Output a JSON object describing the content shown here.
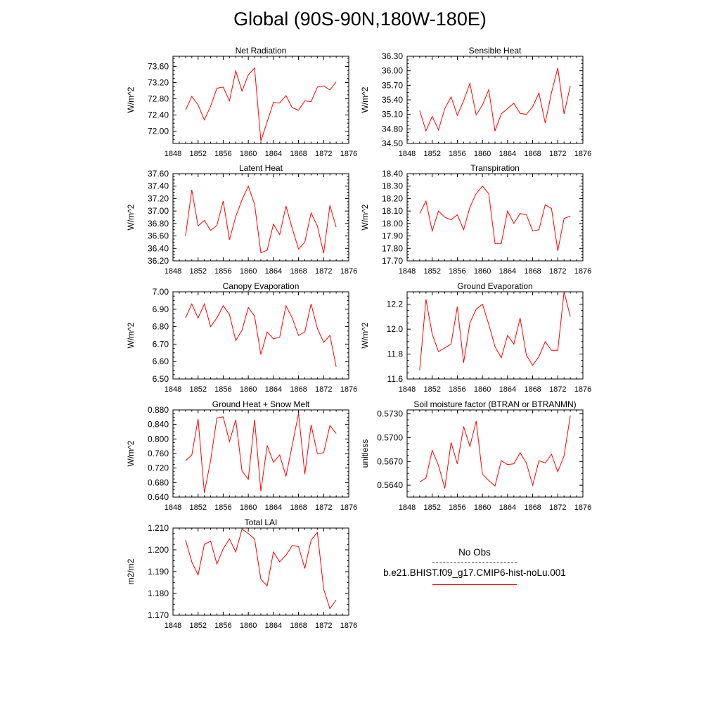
{
  "page_title": "Global (90S-90N,180W-180E)",
  "chart_data": [
    {
      "type": "line",
      "title": "Net Radiation",
      "ylabel": "W/m^2",
      "xlim": [
        1848,
        1876
      ],
      "ylim": [
        71.7,
        73.85
      ],
      "xticks": [
        1848,
        1852,
        1856,
        1860,
        1864,
        1868,
        1872,
        1876
      ],
      "yticks": [
        72.0,
        72.4,
        72.8,
        73.2,
        73.6
      ],
      "ytick_decimals": 2,
      "series": [
        {
          "color": "#ff0000",
          "x": [
            1850,
            1851,
            1852,
            1853,
            1854,
            1855,
            1856,
            1857,
            1858,
            1859,
            1860,
            1861,
            1862,
            1863,
            1864,
            1865,
            1866,
            1867,
            1868,
            1869,
            1870,
            1871,
            1872,
            1873,
            1874
          ],
          "y": [
            72.52,
            72.86,
            72.65,
            72.28,
            72.62,
            73.06,
            73.09,
            72.75,
            73.49,
            72.99,
            73.39,
            73.56,
            71.76,
            72.23,
            72.71,
            72.7,
            72.88,
            72.58,
            72.52,
            72.75,
            72.73,
            73.09,
            73.12,
            73.02,
            73.22
          ]
        }
      ]
    },
    {
      "type": "line",
      "title": "Sensible Heat",
      "ylabel": "W/m^2",
      "xlim": [
        1848,
        1876
      ],
      "ylim": [
        34.5,
        36.3
      ],
      "xticks": [
        1848,
        1852,
        1856,
        1860,
        1864,
        1868,
        1872,
        1876
      ],
      "yticks": [
        34.5,
        34.8,
        35.1,
        35.4,
        35.7,
        36.0,
        36.3
      ],
      "ytick_decimals": 2,
      "series": [
        {
          "color": "#ff0000",
          "x": [
            1850,
            1851,
            1852,
            1853,
            1854,
            1855,
            1856,
            1857,
            1858,
            1859,
            1860,
            1861,
            1862,
            1863,
            1864,
            1865,
            1866,
            1867,
            1868,
            1869,
            1870,
            1871,
            1872,
            1873,
            1874
          ],
          "y": [
            35.18,
            34.76,
            35.06,
            34.78,
            35.22,
            35.46,
            35.08,
            35.38,
            35.74,
            35.09,
            35.29,
            35.61,
            34.76,
            35.11,
            35.22,
            35.33,
            35.12,
            35.1,
            35.26,
            35.54,
            34.92,
            35.55,
            36.06,
            35.11,
            35.69
          ]
        }
      ]
    },
    {
      "type": "line",
      "title": "Latent Heat",
      "ylabel": "W/m^2",
      "xlim": [
        1848,
        1876
      ],
      "ylim": [
        36.2,
        37.6
      ],
      "xticks": [
        1848,
        1852,
        1856,
        1860,
        1864,
        1868,
        1872,
        1876
      ],
      "yticks": [
        36.2,
        36.4,
        36.6,
        36.8,
        37.0,
        37.2,
        37.4,
        37.6
      ],
      "ytick_decimals": 2,
      "series": [
        {
          "color": "#ff0000",
          "x": [
            1850,
            1851,
            1852,
            1853,
            1854,
            1855,
            1856,
            1857,
            1858,
            1859,
            1860,
            1861,
            1862,
            1863,
            1864,
            1865,
            1866,
            1867,
            1868,
            1869,
            1870,
            1871,
            1872,
            1873,
            1874
          ],
          "y": [
            36.6,
            37.34,
            36.76,
            36.85,
            36.69,
            36.77,
            37.16,
            36.54,
            36.91,
            37.18,
            37.4,
            37.11,
            36.33,
            36.37,
            36.79,
            36.62,
            37.08,
            36.72,
            36.39,
            36.5,
            36.97,
            36.76,
            36.32,
            37.09,
            36.74
          ]
        }
      ]
    },
    {
      "type": "line",
      "title": "Transpiration",
      "ylabel": "W/m^2",
      "xlim": [
        1848,
        1876
      ],
      "ylim": [
        17.7,
        18.4
      ],
      "xticks": [
        1848,
        1852,
        1856,
        1860,
        1864,
        1868,
        1872,
        1876
      ],
      "yticks": [
        17.7,
        17.8,
        17.9,
        18.0,
        18.1,
        18.2,
        18.3,
        18.4
      ],
      "ytick_decimals": 2,
      "series": [
        {
          "color": "#ff0000",
          "x": [
            1850,
            1851,
            1852,
            1853,
            1854,
            1855,
            1856,
            1857,
            1858,
            1859,
            1860,
            1861,
            1862,
            1863,
            1864,
            1865,
            1866,
            1867,
            1868,
            1869,
            1870,
            1871,
            1872,
            1873,
            1874
          ],
          "y": [
            18.08,
            18.18,
            17.94,
            18.1,
            18.05,
            18.03,
            18.07,
            17.95,
            18.13,
            18.24,
            18.3,
            18.24,
            17.84,
            17.84,
            18.1,
            18.0,
            18.08,
            18.07,
            17.94,
            17.95,
            18.15,
            18.12,
            17.78,
            18.04,
            18.06
          ]
        }
      ]
    },
    {
      "type": "line",
      "title": "Canopy Evaporation",
      "ylabel": "W/m^2",
      "xlim": [
        1848,
        1876
      ],
      "ylim": [
        6.5,
        7.0
      ],
      "xticks": [
        1848,
        1852,
        1856,
        1860,
        1864,
        1868,
        1872,
        1876
      ],
      "yticks": [
        6.5,
        6.6,
        6.7,
        6.8,
        6.9,
        7.0
      ],
      "ytick_decimals": 2,
      "series": [
        {
          "color": "#ff0000",
          "x": [
            1850,
            1851,
            1852,
            1853,
            1854,
            1855,
            1856,
            1857,
            1858,
            1859,
            1860,
            1861,
            1862,
            1863,
            1864,
            1865,
            1866,
            1867,
            1868,
            1869,
            1870,
            1871,
            1872,
            1873,
            1874
          ],
          "y": [
            6.85,
            6.93,
            6.85,
            6.93,
            6.8,
            6.85,
            6.92,
            6.87,
            6.72,
            6.78,
            6.91,
            6.86,
            6.64,
            6.77,
            6.73,
            6.74,
            6.92,
            6.85,
            6.75,
            6.77,
            6.93,
            6.79,
            6.71,
            6.75,
            6.57
          ]
        }
      ]
    },
    {
      "type": "line",
      "title": "Ground Evaporation",
      "ylabel": "W/m^2",
      "xlim": [
        1848,
        1876
      ],
      "ylim": [
        11.6,
        12.3
      ],
      "xticks": [
        1848,
        1852,
        1856,
        1860,
        1864,
        1868,
        1872,
        1876
      ],
      "yticks": [
        11.6,
        11.8,
        12.0,
        12.2
      ],
      "ytick_decimals": 1,
      "series": [
        {
          "color": "#ff0000",
          "x": [
            1850,
            1851,
            1852,
            1853,
            1854,
            1855,
            1856,
            1857,
            1858,
            1859,
            1860,
            1861,
            1862,
            1863,
            1864,
            1865,
            1866,
            1867,
            1868,
            1869,
            1870,
            1871,
            1872,
            1873,
            1874
          ],
          "y": [
            11.67,
            12.24,
            11.96,
            11.82,
            11.85,
            11.88,
            12.18,
            11.73,
            12.05,
            12.16,
            12.2,
            12.04,
            11.86,
            11.77,
            11.95,
            11.88,
            12.09,
            11.79,
            11.71,
            11.78,
            11.9,
            11.83,
            11.83,
            12.3,
            12.1
          ]
        }
      ]
    },
    {
      "type": "line",
      "title": "Ground Heat + Snow Melt",
      "ylabel": "W/m^2",
      "xlim": [
        1848,
        1876
      ],
      "ylim": [
        0.64,
        0.88
      ],
      "xticks": [
        1848,
        1852,
        1856,
        1860,
        1864,
        1868,
        1872,
        1876
      ],
      "yticks": [
        0.64,
        0.68,
        0.72,
        0.76,
        0.8,
        0.84,
        0.88
      ],
      "ytick_decimals": 3,
      "series": [
        {
          "color": "#ff0000",
          "x": [
            1850,
            1851,
            1852,
            1853,
            1854,
            1855,
            1856,
            1857,
            1858,
            1859,
            1860,
            1861,
            1862,
            1863,
            1864,
            1865,
            1866,
            1867,
            1868,
            1869,
            1870,
            1871,
            1872,
            1873,
            1874
          ],
          "y": [
            0.74,
            0.756,
            0.855,
            0.652,
            0.741,
            0.858,
            0.861,
            0.793,
            0.853,
            0.712,
            0.689,
            0.853,
            0.656,
            0.782,
            0.736,
            0.756,
            0.697,
            0.783,
            0.87,
            0.703,
            0.839,
            0.76,
            0.762,
            0.837,
            0.815
          ]
        }
      ]
    },
    {
      "type": "line",
      "title": "Soil moisture factor (BTRAN or BTRANMN)",
      "ylabel": "unitless",
      "xlim": [
        1848,
        1876
      ],
      "ylim": [
        0.5625,
        0.5735
      ],
      "xticks": [
        1848,
        1852,
        1856,
        1860,
        1864,
        1868,
        1872,
        1876
      ],
      "yticks": [
        0.564,
        0.567,
        0.57,
        0.573
      ],
      "ytick_decimals": 4,
      "series": [
        {
          "color": "#ff0000",
          "x": [
            1850,
            1851,
            1852,
            1853,
            1854,
            1855,
            1856,
            1857,
            1858,
            1859,
            1860,
            1861,
            1862,
            1863,
            1864,
            1865,
            1866,
            1867,
            1868,
            1869,
            1870,
            1871,
            1872,
            1873,
            1874
          ],
          "y": [
            0.5644,
            0.5649,
            0.5684,
            0.5665,
            0.5636,
            0.5694,
            0.5667,
            0.5714,
            0.5689,
            0.5721,
            0.5654,
            0.5646,
            0.5639,
            0.5671,
            0.5666,
            0.5667,
            0.5681,
            0.5668,
            0.564,
            0.5671,
            0.5668,
            0.5679,
            0.5657,
            0.5677,
            0.5728
          ]
        }
      ]
    },
    {
      "type": "line",
      "title": "Total LAI",
      "ylabel": "m2/m2",
      "xlim": [
        1848,
        1876
      ],
      "ylim": [
        1.17,
        1.21
      ],
      "xticks": [
        1848,
        1852,
        1856,
        1860,
        1864,
        1868,
        1872,
        1876
      ],
      "yticks": [
        1.17,
        1.18,
        1.19,
        1.2,
        1.21
      ],
      "ytick_decimals": 3,
      "series": [
        {
          "color": "#ff0000",
          "x": [
            1850,
            1851,
            1852,
            1853,
            1854,
            1855,
            1856,
            1857,
            1858,
            1859,
            1860,
            1861,
            1862,
            1863,
            1864,
            1865,
            1866,
            1867,
            1868,
            1869,
            1870,
            1871,
            1872,
            1873,
            1874
          ],
          "y": [
            1.2045,
            1.1945,
            1.1885,
            1.2025,
            1.204,
            1.1935,
            1.2005,
            1.205,
            1.199,
            1.2095,
            1.2075,
            1.205,
            1.1865,
            1.1835,
            1.199,
            1.1945,
            1.1975,
            1.202,
            1.2015,
            1.1915,
            1.2045,
            1.208,
            1.182,
            1.173,
            1.177
          ]
        }
      ]
    }
  ],
  "legend": {
    "obs_label": "No Obs",
    "obs_color": "#2a2a6e",
    "case_label": "b.e21.BHIST.f09_g17.CMIP6-hist-noLu.001",
    "case_color": "#ff0000"
  }
}
